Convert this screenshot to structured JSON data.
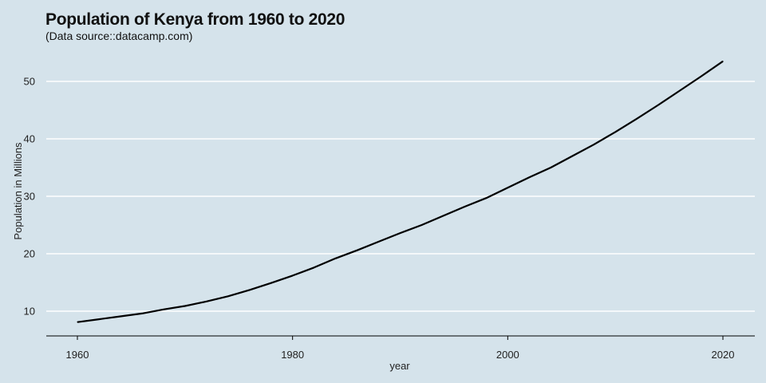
{
  "chart_data": {
    "type": "line",
    "title": "Population of Kenya from 1960 to 2020",
    "subtitle": "(Data source::datacamp.com)",
    "xlabel": "year",
    "ylabel": "Population in Millions",
    "xlim": [
      1960,
      2020
    ],
    "ylim": [
      8,
      54
    ],
    "x_ticks": [
      1960,
      1980,
      2000,
      2020
    ],
    "y_ticks": [
      10,
      20,
      30,
      40,
      50
    ],
    "grid": {
      "horizontal": true,
      "vertical": false
    },
    "colors": {
      "background": "#d5e3eb",
      "grid": "#ffffff",
      "line": "#000000"
    },
    "series": [
      {
        "x": [
          1960,
          1962,
          1964,
          1966,
          1968,
          1970,
          1972,
          1974,
          1976,
          1978,
          1980,
          1982,
          1984,
          1986,
          1988,
          1990,
          1992,
          1994,
          1996,
          1998,
          2000,
          2002,
          2004,
          2006,
          2008,
          2010,
          2012,
          2014,
          2016,
          2018,
          2020
        ],
        "y": [
          8.1,
          8.6,
          9.1,
          9.6,
          10.3,
          10.9,
          11.7,
          12.6,
          13.7,
          14.9,
          16.2,
          17.6,
          19.2,
          20.6,
          22.1,
          23.6,
          25.0,
          26.6,
          28.2,
          29.7,
          31.5,
          33.3,
          35.0,
          37.0,
          39.0,
          41.2,
          43.5,
          45.9,
          48.4,
          50.9,
          53.5
        ]
      }
    ]
  }
}
